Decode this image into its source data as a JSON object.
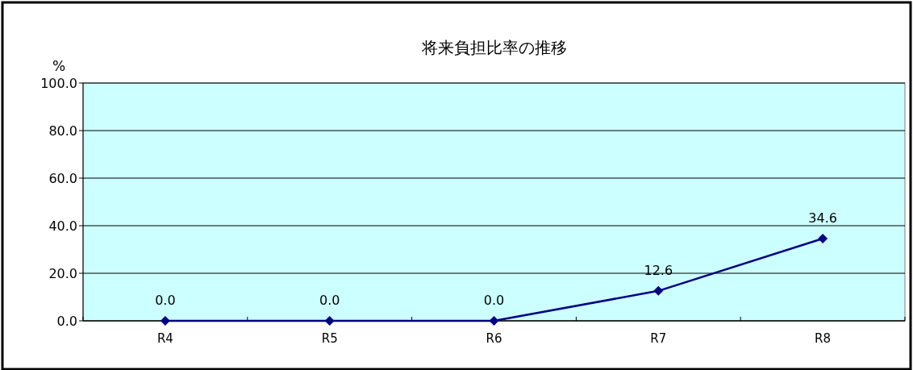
{
  "chart_data": {
    "type": "line",
    "title": "将来負担比率の推移",
    "ylabel": "%",
    "categories": [
      "R4",
      "R5",
      "R6",
      "R7",
      "R8"
    ],
    "series": [
      {
        "color": "#000080",
        "values": [
          0,
          0,
          0,
          12.6,
          34.6
        ],
        "value_labels": [
          "0.0",
          "0.0",
          "0.0",
          "12.6",
          "34.6"
        ]
      }
    ],
    "ylim": [
      0,
      100
    ],
    "yticks": [
      {
        "value": 0,
        "label": "0.0"
      },
      {
        "value": 20,
        "label": "20.0"
      },
      {
        "value": 40,
        "label": "40.0"
      },
      {
        "value": 60,
        "label": "60.0"
      },
      {
        "value": 80,
        "label": "80.0"
      },
      {
        "value": 100,
        "label": "100.0"
      }
    ],
    "grid": "y",
    "marker": "diamond",
    "line_style": "solid"
  }
}
